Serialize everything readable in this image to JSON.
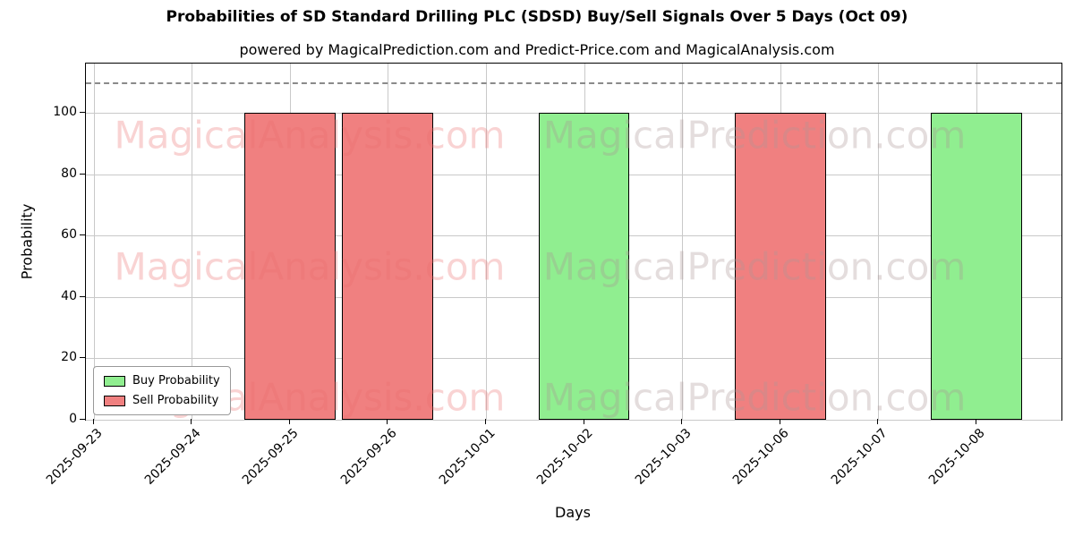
{
  "chart_data": {
    "type": "bar",
    "title": "Probabilities of SD Standard Drilling PLC (SDSD) Buy/Sell Signals Over 5 Days (Oct 09)",
    "subtitle": "powered by MagicalPrediction.com and Predict-Price.com and MagicalAnalysis.com",
    "xlabel": "Days",
    "ylabel": "Probability",
    "ylim": [
      0,
      116
    ],
    "yticks": [
      0,
      20,
      40,
      60,
      80,
      100
    ],
    "categories": [
      "2025-09-23",
      "2025-09-24",
      "2025-09-25",
      "2025-09-26",
      "2025-10-01",
      "2025-10-02",
      "2025-10-03",
      "2025-10-06",
      "2025-10-07",
      "2025-10-08"
    ],
    "series": [
      {
        "name": "Buy Probability",
        "color": "#90EE90",
        "values": [
          0,
          0,
          0,
          0,
          0,
          100,
          0,
          0,
          0,
          100
        ]
      },
      {
        "name": "Sell Probability",
        "color": "#F08080",
        "values": [
          0,
          0,
          100,
          100,
          0,
          0,
          0,
          100,
          0,
          0
        ]
      }
    ],
    "bar_edge_color": "#000000",
    "dashed_line_y": 110,
    "grid": true,
    "legend_position": "lower left",
    "watermarks": {
      "texts": [
        "MagicalAnalysis.com",
        "MagicalPrediction.com"
      ],
      "color_left": "rgba(235,110,110,0.30)",
      "color_right": "rgba(170,150,150,0.32)"
    }
  }
}
